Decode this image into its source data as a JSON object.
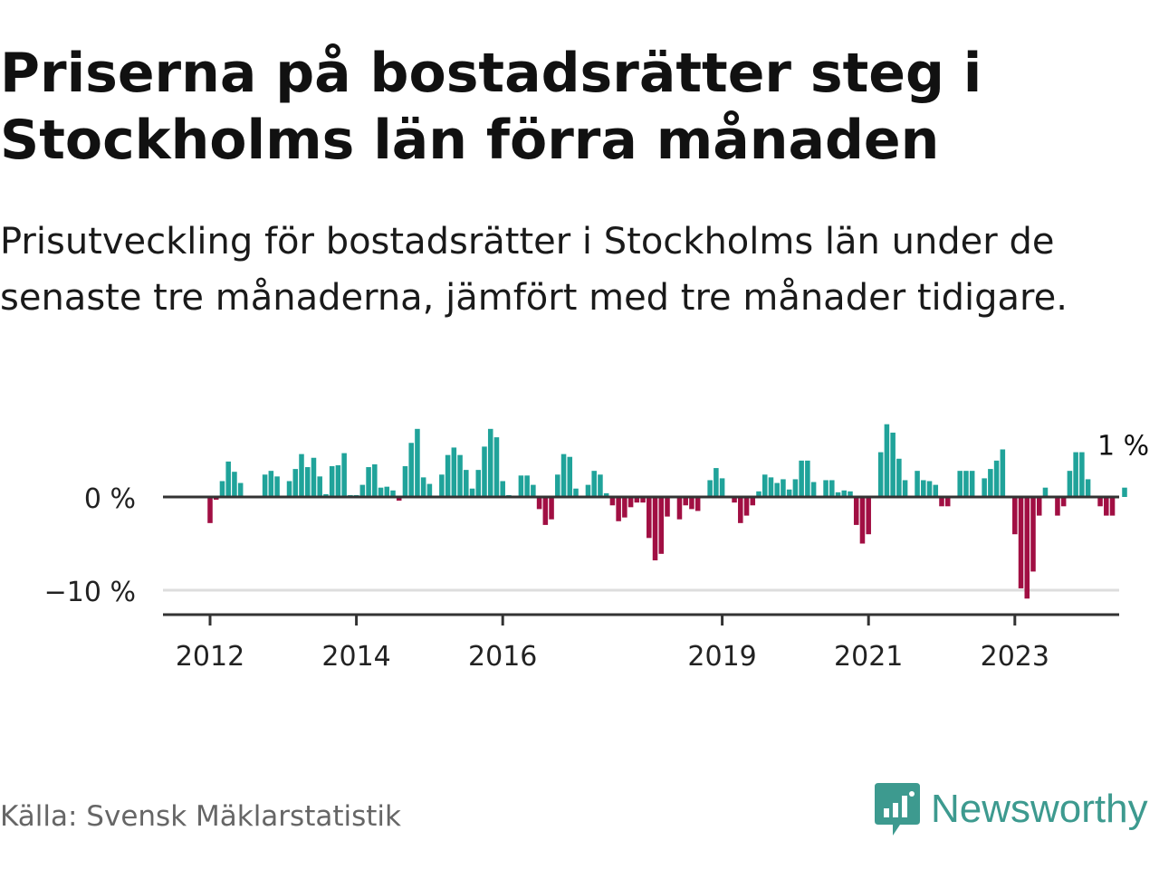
{
  "title": "Priserna på bostadsrätter steg i Stockholms län förra månaden",
  "subtitle": "Prisutveckling för bostadsrätter i Stockholms län under de senaste tre månaderna, jämfört med tre månader tidigare.",
  "source": "Källa: Svensk Mäklarstatistik",
  "brand": {
    "name": "Newsworthy",
    "logo_icon": "newsworthy-logo-icon"
  },
  "colors": {
    "positive": "#20a39a",
    "negative": "#a10f43",
    "axis": "#333333",
    "grid": "#dddddd",
    "brand": "#3d9a8f"
  },
  "chart_data": {
    "type": "bar",
    "title": "Priserna på bostadsrätter steg i Stockholms län förra månaden",
    "xlabel": "",
    "ylabel": "",
    "ylim": [
      -12,
      8
    ],
    "y_ticks": [
      {
        "value": 0,
        "label": "0 %"
      },
      {
        "value": -10,
        "label": "−10 %"
      }
    ],
    "x_ticks": [
      {
        "year": 2012,
        "label": "2012"
      },
      {
        "year": 2014,
        "label": "2014"
      },
      {
        "year": 2016,
        "label": "2016"
      },
      {
        "year": 2019,
        "label": "2019"
      },
      {
        "year": 2021,
        "label": "2021"
      },
      {
        "year": 2023,
        "label": "2023"
      }
    ],
    "start": "2012-01",
    "frequency": "monthly",
    "unit": "%",
    "annotation": {
      "label": "1 %",
      "value": 1
    },
    "values": [
      -2.8,
      -0.3,
      1.7,
      3.8,
      2.7,
      1.5,
      0,
      0,
      0,
      2.4,
      2.8,
      2.2,
      0,
      1.7,
      3.0,
      4.6,
      3.2,
      4.2,
      2.2,
      0.3,
      3.3,
      3.4,
      4.7,
      0.2,
      0.2,
      1.3,
      3.2,
      3.5,
      1.0,
      1.1,
      0.7,
      -0.4,
      3.3,
      5.8,
      7.3,
      2.1,
      1.4,
      0,
      2.4,
      4.5,
      5.3,
      4.5,
      2.9,
      0.9,
      2.9,
      5.4,
      7.3,
      6.4,
      1.7,
      0.2,
      0,
      2.3,
      2.3,
      1.3,
      -1.3,
      -3.0,
      -2.4,
      2.4,
      4.6,
      4.3,
      0.9,
      0,
      1.3,
      2.8,
      2.4,
      0.4,
      -0.9,
      -2.6,
      -2.2,
      -1.1,
      -0.6,
      -0.6,
      -4.4,
      -6.8,
      -6.1,
      -2.1,
      0,
      -2.4,
      -0.9,
      -1.3,
      -1.5,
      0,
      1.8,
      3.1,
      2.0,
      0,
      -0.6,
      -2.8,
      -2.0,
      -0.9,
      0.6,
      2.4,
      2.1,
      1.5,
      1.9,
      0.8,
      1.9,
      3.9,
      3.9,
      1.6,
      0,
      1.8,
      1.8,
      0.5,
      0.7,
      0.6,
      -3.0,
      -5.0,
      -4.0,
      0,
      4.8,
      7.8,
      6.9,
      4.1,
      1.8,
      0,
      2.8,
      1.8,
      1.7,
      1.3,
      -1.0,
      -1.0,
      0,
      2.8,
      2.8,
      2.8,
      0,
      2.0,
      3.0,
      3.9,
      5.1,
      0,
      -4.0,
      -9.8,
      -10.9,
      -8.0,
      -2.0,
      1.0,
      0,
      -2.0,
      -1.0,
      2.8,
      4.8,
      4.8,
      1.9,
      0,
      -1.0,
      -2.0,
      -2.0,
      0,
      1.0
    ]
  }
}
